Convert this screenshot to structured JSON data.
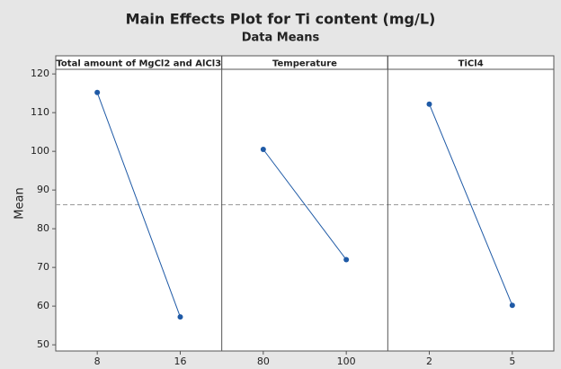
{
  "chart_data": {
    "type": "line",
    "title": "Main Effects Plot for Ti content (mg/L)",
    "subtitle": "Data Means",
    "y_label": "Mean",
    "color": "#1f5aa6",
    "reference": 86.2,
    "ylim": [
      48.4,
      121.2
    ],
    "yticks": [
      50,
      60,
      70,
      80,
      90,
      100,
      110,
      120
    ],
    "panels": [
      {
        "title": "Total amount of MgCl2 and AlCl3",
        "categories": [
          "8",
          "16"
        ],
        "values": [
          115.2,
          57.2
        ]
      },
      {
        "title": "Temperature",
        "categories": [
          "80",
          "100"
        ],
        "values": [
          100.5,
          72.0
        ]
      },
      {
        "title": "TiCl4",
        "categories": [
          "2",
          "5"
        ],
        "values": [
          112.2,
          60.2
        ]
      }
    ]
  }
}
